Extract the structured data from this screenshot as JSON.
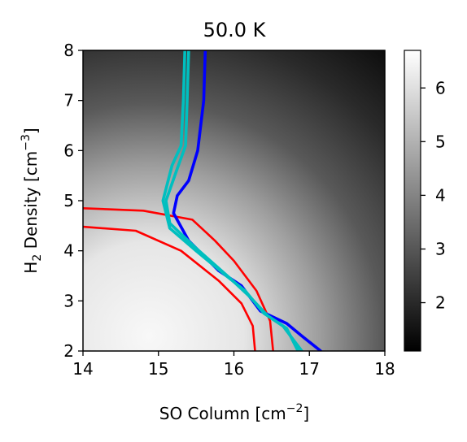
{
  "chart_data": {
    "type": "heatmap",
    "title": "50.0 K",
    "xlabel": "SO Column [cm",
    "xlabel_sup": "−2",
    "xlabel_end": "]",
    "ylabel_a": "H",
    "ylabel_sub": "2",
    "ylabel_b": " Density [cm",
    "ylabel_sup": "−3",
    "ylabel_end": "]",
    "xlim": [
      14,
      18
    ],
    "ylim": [
      2,
      8
    ],
    "xticks": [
      "14",
      "15",
      "16",
      "17",
      "18"
    ],
    "yticks": [
      "2",
      "3",
      "4",
      "5",
      "6",
      "7",
      "8"
    ],
    "colorbar": {
      "range": [
        1.1,
        6.7
      ],
      "ticks": [
        "2",
        "3",
        "4",
        "5",
        "6"
      ],
      "colormap": "gray"
    },
    "contours": [
      {
        "color": "#ff0000",
        "points": [
          [
            14.0,
            4.48
          ],
          [
            14.7,
            4.4
          ],
          [
            15.3,
            4.0
          ],
          [
            15.8,
            3.4
          ],
          [
            16.1,
            2.95
          ],
          [
            16.25,
            2.5
          ],
          [
            16.28,
            2.0
          ]
        ]
      },
      {
        "color": "#ff0000",
        "points": [
          [
            14.0,
            4.85
          ],
          [
            14.8,
            4.8
          ],
          [
            15.45,
            4.62
          ],
          [
            15.75,
            4.2
          ],
          [
            16.0,
            3.8
          ],
          [
            16.3,
            3.2
          ],
          [
            16.48,
            2.6
          ],
          [
            16.52,
            2.0
          ]
        ]
      },
      {
        "color": "#0000ff",
        "points": [
          [
            15.62,
            8.0
          ],
          [
            15.6,
            7.0
          ],
          [
            15.52,
            6.0
          ],
          [
            15.4,
            5.4
          ],
          [
            15.25,
            5.1
          ],
          [
            15.2,
            4.75
          ],
          [
            15.4,
            4.2
          ],
          [
            15.8,
            3.6
          ],
          [
            16.1,
            3.3
          ],
          [
            16.35,
            2.8
          ],
          [
            16.7,
            2.55
          ],
          [
            16.9,
            2.3
          ],
          [
            17.15,
            2.0
          ]
        ]
      },
      {
        "color": "#00bfbf",
        "points": [
          [
            15.35,
            8.0
          ],
          [
            15.33,
            7.0
          ],
          [
            15.3,
            6.1
          ],
          [
            15.18,
            5.7
          ],
          [
            15.06,
            5.0
          ],
          [
            15.15,
            4.45
          ],
          [
            15.5,
            4.0
          ],
          [
            15.9,
            3.5
          ],
          [
            16.15,
            3.2
          ],
          [
            16.4,
            2.75
          ],
          [
            16.65,
            2.5
          ],
          [
            16.8,
            2.2
          ],
          [
            16.9,
            2.0
          ]
        ]
      },
      {
        "color": "#00bfbf",
        "points": [
          [
            15.4,
            8.0
          ],
          [
            15.38,
            7.0
          ],
          [
            15.36,
            6.1
          ],
          [
            15.24,
            5.6
          ],
          [
            15.1,
            5.0
          ],
          [
            15.15,
            4.55
          ],
          [
            15.5,
            4.05
          ],
          [
            15.95,
            3.45
          ],
          [
            16.2,
            3.1
          ],
          [
            16.45,
            2.7
          ],
          [
            16.7,
            2.45
          ],
          [
            16.85,
            2.0
          ]
        ]
      }
    ]
  }
}
